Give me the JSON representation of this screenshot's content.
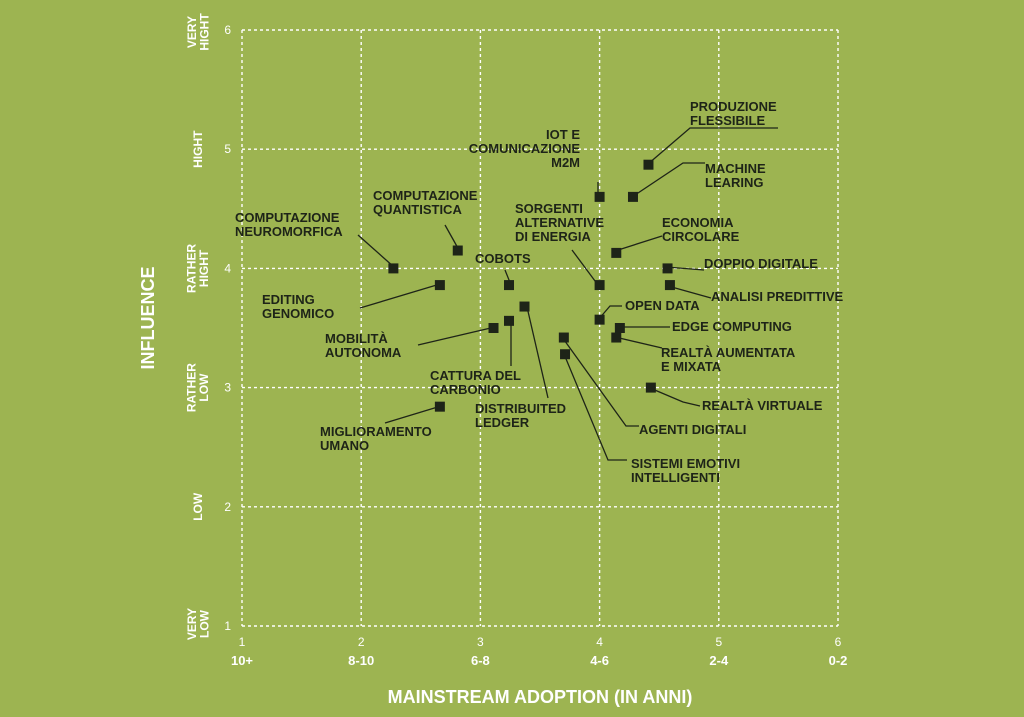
{
  "chart_data": {
    "type": "scatter",
    "xlabel": "MAINSTREAM ADOPTION (IN ANNI)",
    "ylabel": "INFLUENCE",
    "xlim": [
      1,
      6
    ],
    "ylim": [
      1,
      6
    ],
    "x_ticks": [
      "1",
      "2",
      "3",
      "4",
      "5",
      "6"
    ],
    "x_tick_sublabels": [
      "10+",
      "8-10",
      "6-8",
      "4-6",
      "2-4",
      "0-2"
    ],
    "y_ticks": [
      "1",
      "2",
      "3",
      "4",
      "5",
      "6"
    ],
    "y_level_labels": [
      {
        "y": 1,
        "lines": [
          "VERY",
          "LOW"
        ]
      },
      {
        "y": 2,
        "lines": [
          "LOW"
        ]
      },
      {
        "y": 3,
        "lines": [
          "RATHER",
          "LOW"
        ]
      },
      {
        "y": 4,
        "lines": [
          "RATHER",
          "HIGHT"
        ]
      },
      {
        "y": 5,
        "lines": [
          "HIGHT"
        ]
      },
      {
        "y": 6,
        "lines": [
          "VERY",
          "HIGHT"
        ]
      }
    ],
    "grid": true,
    "colors": {
      "background": "#9db451",
      "grid": "#ffffff",
      "points": "#1e2418",
      "axis_text": "#ffffff"
    },
    "points": [
      {
        "lines": [
          "PRODUZIONE",
          "FLESSIBILE"
        ],
        "x": 4.41,
        "y": 4.87
      },
      {
        "lines": [
          "IOT E",
          "COMUNICAZIONE",
          "M2M"
        ],
        "x": 4.0,
        "y": 4.6
      },
      {
        "lines": [
          "MACHINE",
          "LEARING"
        ],
        "x": 4.28,
        "y": 4.6
      },
      {
        "lines": [
          "COMPUTAZIONE",
          "QUANTISTICA"
        ],
        "x": 2.81,
        "y": 4.15
      },
      {
        "lines": [
          "SORGENTI",
          "ALTERNATIVE",
          "DI ENERGIA"
        ],
        "x": 4.0,
        "y": 3.86
      },
      {
        "lines": [
          "ECONOMIA",
          "CIRCOLARE"
        ],
        "x": 4.14,
        "y": 4.13
      },
      {
        "lines": [
          "COMPUTAZIONE",
          "NEUROMORFICA"
        ],
        "x": 2.27,
        "y": 4.0
      },
      {
        "lines": [
          "COBOTS"
        ],
        "x": 3.24,
        "y": 3.86
      },
      {
        "lines": [
          "DOPPIO DIGITALE"
        ],
        "x": 4.57,
        "y": 4.0
      },
      {
        "lines": [
          "EDITING",
          "GENOMICO"
        ],
        "x": 2.66,
        "y": 3.86
      },
      {
        "lines": [
          "ANALISI PREDITTIVE"
        ],
        "x": 4.59,
        "y": 3.86
      },
      {
        "lines": [
          "OPEN DATA"
        ],
        "x": 4.0,
        "y": 3.57
      },
      {
        "lines": [
          "MOBILITÀ",
          "AUTONOMA"
        ],
        "x": 3.11,
        "y": 3.5
      },
      {
        "lines": [
          "EDGE COMPUTING"
        ],
        "x": 4.17,
        "y": 3.5
      },
      {
        "lines": [
          "CATTURA DEL",
          "CARBONIO"
        ],
        "x": 3.24,
        "y": 3.56
      },
      {
        "lines": [
          "DISTRIBUITED",
          "LEDGER"
        ],
        "x": 3.37,
        "y": 3.68
      },
      {
        "lines": [
          "REALTÀ AUMENTATA",
          "E MIXATA"
        ],
        "x": 4.14,
        "y": 3.42
      },
      {
        "lines": [
          "AGENTI DIGITALI"
        ],
        "x": 3.7,
        "y": 3.42
      },
      {
        "lines": [
          "SISTEMI EMOTIVI",
          "INTELLIGENTI"
        ],
        "x": 3.71,
        "y": 3.28
      },
      {
        "lines": [
          "REALTÀ VIRTUALE"
        ],
        "x": 4.43,
        "y": 3.0
      },
      {
        "lines": [
          "MIGLIORAMENTO",
          "UMANO"
        ],
        "x": 2.66,
        "y": 2.84
      }
    ]
  }
}
